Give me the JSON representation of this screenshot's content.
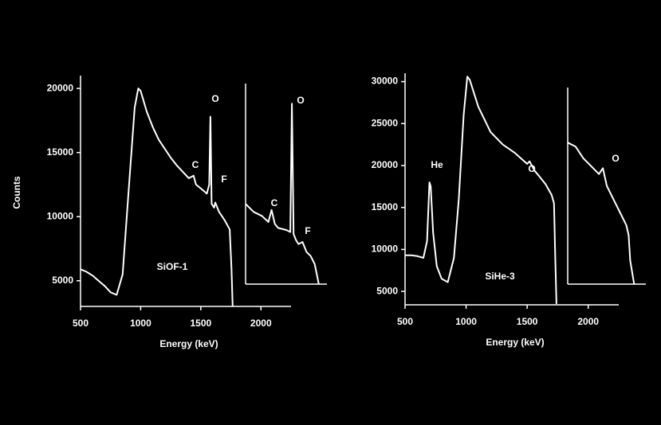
{
  "chart_data": [
    {
      "type": "line",
      "xlabel": "Energy (keV)",
      "ylabel": "Counts",
      "color": "#ffffff",
      "x": [
        500,
        550,
        600,
        650,
        700,
        750,
        800,
        850,
        900,
        950,
        980,
        1000,
        1050,
        1100,
        1150,
        1200,
        1250,
        1300,
        1350,
        1400,
        1440,
        1460,
        1500,
        1550,
        1570,
        1580,
        1590,
        1610,
        1620,
        1650,
        1700,
        1740,
        1755,
        1765
      ],
      "values": [
        5900,
        5700,
        5400,
        5000,
        4600,
        4100,
        3900,
        5500,
        12000,
        18500,
        20000,
        19800,
        18200,
        17000,
        16000,
        15300,
        14600,
        14000,
        13500,
        13000,
        13200,
        12500,
        12200,
        11800,
        12500,
        17800,
        11000,
        10700,
        11100,
        10400,
        9700,
        9000,
        6000,
        3000
      ],
      "xlim": [
        500,
        2250
      ],
      "ylim": [
        3000,
        21000
      ],
      "xticks": [
        500,
        1000,
        1500,
        2000
      ],
      "yticks": [
        5000,
        10000,
        15000,
        20000
      ],
      "annotations": [
        "C",
        "O",
        "F",
        "SiOF-1"
      ],
      "inset": {
        "x": [
          0,
          10,
          20,
          28,
          32,
          36,
          40,
          50,
          55,
          57,
          59,
          62,
          65,
          70,
          75,
          80,
          85,
          90
        ],
        "values": [
          40,
          36,
          34,
          31,
          37,
          30,
          28,
          27,
          26,
          90,
          25,
          22,
          20,
          21,
          16,
          14,
          10,
          0
        ],
        "xlim": [
          0,
          100
        ],
        "ylim": [
          0,
          100
        ],
        "annotations": [
          "C",
          "O",
          "F"
        ]
      }
    },
    {
      "type": "line",
      "xlabel": "Energy (keV)",
      "color": "#ffffff",
      "x": [
        500,
        550,
        600,
        650,
        680,
        700,
        710,
        730,
        760,
        800,
        850,
        900,
        940,
        980,
        1010,
        1030,
        1100,
        1200,
        1300,
        1400,
        1500,
        1520,
        1560,
        1600,
        1650,
        1700,
        1720,
        1730,
        1740
      ],
      "values": [
        9300,
        9300,
        9200,
        9000,
        11000,
        18000,
        17500,
        12000,
        8000,
        6500,
        6100,
        9000,
        16000,
        26000,
        30600,
        30200,
        27000,
        24000,
        22500,
        21500,
        20200,
        20500,
        19400,
        18700,
        17800,
        16500,
        15500,
        9000,
        3500
      ],
      "xlim": [
        500,
        2250
      ],
      "ylim": [
        3400,
        31000
      ],
      "xticks": [
        500,
        1000,
        1500,
        2000
      ],
      "yticks": [
        5000,
        10000,
        15000,
        20000,
        25000,
        30000
      ],
      "annotations": [
        "He",
        "O",
        "SiHe-3"
      ],
      "inset": {
        "x": [
          0,
          10,
          20,
          30,
          40,
          45,
          50,
          60,
          70,
          75,
          78,
          80,
          85
        ],
        "values": [
          72,
          70,
          64,
          60,
          56,
          59,
          50,
          42,
          34,
          30,
          25,
          12,
          0
        ],
        "xlim": [
          0,
          100
        ],
        "ylim": [
          0,
          100
        ],
        "annotations": [
          "O"
        ]
      }
    }
  ]
}
